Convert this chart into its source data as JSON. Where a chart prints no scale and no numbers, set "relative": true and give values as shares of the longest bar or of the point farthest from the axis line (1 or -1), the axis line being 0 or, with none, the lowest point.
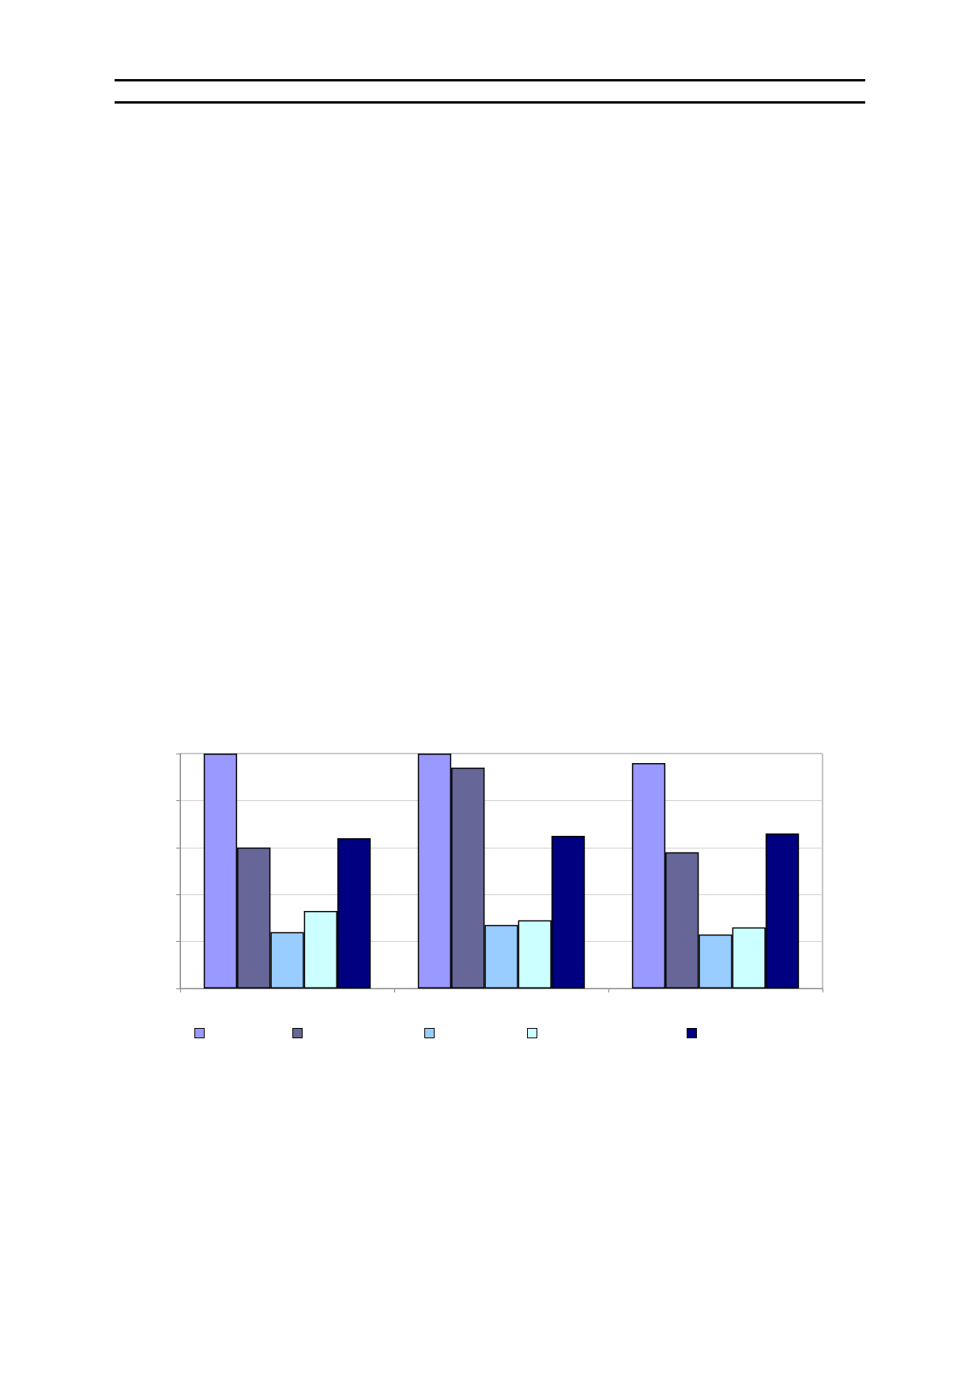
{
  "chart_data": {
    "type": "bar",
    "relative": true,
    "grid": "y",
    "categories": [
      null,
      null,
      null
    ],
    "series": [
      {
        "color": "#9999ff",
        "values": [
          1,
          1,
          0.96
        ]
      },
      {
        "color": "#666699",
        "values": [
          0.6,
          0.94,
          0.58
        ]
      },
      {
        "color": "#99ccff",
        "values": [
          0.24,
          0.27,
          0.23
        ]
      },
      {
        "color": "#ccffff",
        "values": [
          0.33,
          0.29,
          0.26
        ]
      },
      {
        "color": "#000080",
        "values": [
          0.64,
          0.65,
          0.66
        ]
      }
    ]
  }
}
